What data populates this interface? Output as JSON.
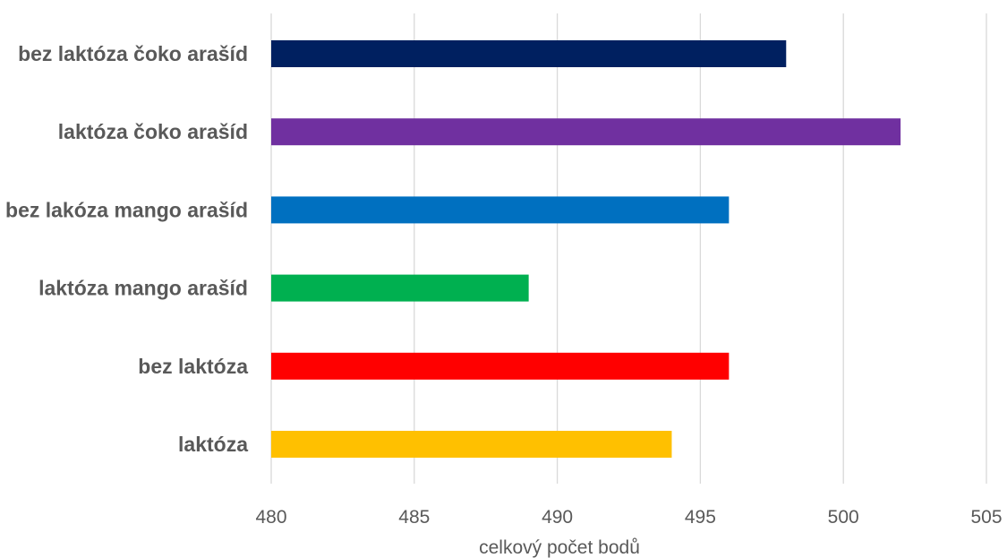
{
  "chart_data": {
    "type": "bar",
    "orientation": "horizontal",
    "title": "",
    "xlabel": "celkový počet bodů",
    "ylabel": "",
    "xlim": [
      480,
      505
    ],
    "xticks": [
      "480",
      "485",
      "490",
      "495",
      "500",
      "505"
    ],
    "grid": true,
    "legend": "none",
    "categories": [
      "bez laktóza čoko arašíd",
      "laktóza čoko arašíd",
      "bez lakóza mango arašíd",
      "laktóza mango arašíd",
      "bez laktóza",
      "laktóza"
    ],
    "values": [
      498,
      502,
      496,
      489,
      496,
      494
    ],
    "colors": [
      "#002060",
      "#7030A0",
      "#0070C0",
      "#00B050",
      "#FF0000",
      "#FFC000"
    ]
  }
}
